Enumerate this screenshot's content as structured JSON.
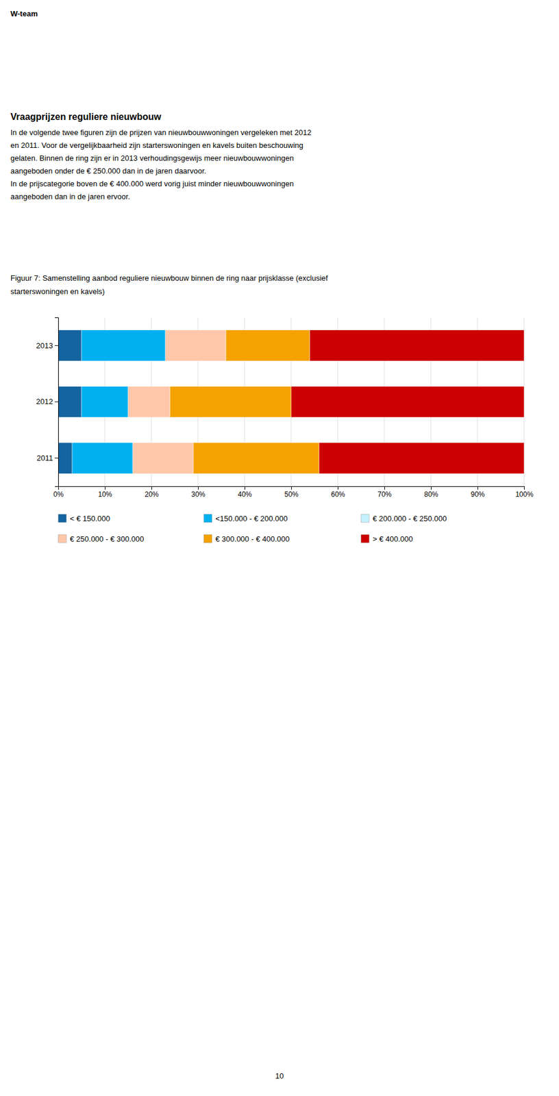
{
  "header": "W-team",
  "heading": "Vraagprijzen reguliere nieuwbouw",
  "body": [
    "In de volgende twee figuren zijn de prijzen van nieuwbouwwoningen vergeleken met 2012",
    "en 2011. Voor de vergelijkbaarheid zijn starterswoningen en kavels buiten beschouwing",
    "gelaten. Binnen de ring zijn er in 2013 verhoudingsgewijs meer nieuwbouwwoningen",
    "aangeboden onder de € 250.000 dan in de jaren daarvoor.",
    "In de prijscategorie boven de € 400.000 werd vorig juist minder nieuwbouwwoningen",
    "aangeboden dan in de jaren ervoor."
  ],
  "footer": "10",
  "chart_data": {
    "type": "bar",
    "orientation": "horizontal",
    "stacked": true,
    "title": [
      "Figuur 7: Samenstelling aanbod reguliere nieuwbouw binnen de ring naar prijsklasse (exclusief",
      "starterswoningen en kavels)"
    ],
    "categories": [
      "2013",
      "2012",
      "2011"
    ],
    "series": [
      {
        "name": "< € 150.000",
        "color": "#1464a0",
        "values": [
          0.05,
          0.05,
          0.03
        ]
      },
      {
        "name": "<150.000 - € 200.000",
        "color": "#00b0f0",
        "values": [
          0.18,
          0.1,
          0.13
        ]
      },
      {
        "name": "€ 200.000 - € 250.000",
        "color": "#c6f0ff",
        "values": [
          0.0,
          0.0,
          0.0
        ]
      },
      {
        "name": "€ 250.000 - € 300.000",
        "color": "#ffc7aa",
        "values": [
          0.13,
          0.09,
          0.13
        ]
      },
      {
        "name": "€ 300.000 - € 400.000",
        "color": "#f5a200",
        "values": [
          0.18,
          0.26,
          0.27
        ]
      },
      {
        "name": "> € 400.000",
        "color": "#cc0000",
        "values": [
          0.46,
          0.5,
          0.44
        ]
      }
    ],
    "xlim": [
      0,
      1.0
    ],
    "xticks": [
      {
        "value": 0.0,
        "label": "0%"
      },
      {
        "value": 0.1,
        "label": "10%"
      },
      {
        "value": 0.2,
        "label": "20%"
      },
      {
        "value": 0.3,
        "label": "30%"
      },
      {
        "value": 0.4,
        "label": "40%"
      },
      {
        "value": 0.5,
        "label": "50%"
      },
      {
        "value": 0.6,
        "label": "60%"
      },
      {
        "value": 0.7,
        "label": "70%"
      },
      {
        "value": 0.8,
        "label": "80%"
      },
      {
        "value": 0.9,
        "label": "90%"
      },
      {
        "value": 1.0,
        "label": "100%"
      }
    ],
    "grid": true,
    "legend": "bottom"
  }
}
